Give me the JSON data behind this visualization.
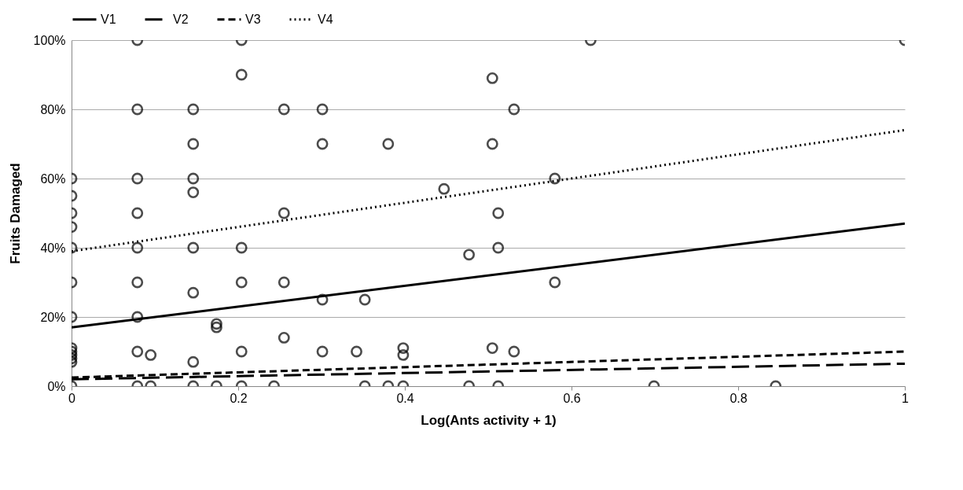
{
  "chart_data": {
    "type": "scatter",
    "xlabel": "Log(Ants activity + 1)",
    "ylabel": "Fruits Damaged",
    "xlim": [
      0,
      1
    ],
    "xticks": [
      0,
      0.2,
      0.4,
      0.6,
      0.8,
      1
    ],
    "ylim": [
      0,
      100
    ],
    "yticks": [
      {
        "value": 0,
        "label": "0%"
      },
      {
        "value": 20,
        "label": "20%"
      },
      {
        "value": 40,
        "label": "40%"
      },
      {
        "value": 60,
        "label": "60%"
      },
      {
        "value": 80,
        "label": "80%"
      },
      {
        "value": 100,
        "label": "100%"
      }
    ],
    "grid": "y",
    "legend": "top",
    "series": [
      {
        "color": "#000000",
        "marker": "circle",
        "x": [
          0,
          0,
          0,
          0,
          0,
          0,
          0,
          0,
          0,
          0,
          0,
          0,
          0,
          0.079,
          0.079,
          0.079,
          0.079,
          0.079,
          0.079,
          0.079,
          0.079,
          0.079,
          0.095,
          0.095,
          0.146,
          0.146,
          0.146,
          0.146,
          0.146,
          0.146,
          0.146,
          0.146,
          0.174,
          0.174,
          0.174,
          0.204,
          0.204,
          0.204,
          0.204,
          0.204,
          0.204,
          0.243,
          0.255,
          0.255,
          0.255,
          0.255,
          0.301,
          0.301,
          0.301,
          0.301,
          0.342,
          0.352,
          0.352,
          0.38,
          0.38,
          0.398,
          0.398,
          0.398,
          0.447,
          0.477,
          0.477,
          0.505,
          0.505,
          0.505,
          0.512,
          0.512,
          0.512,
          0.531,
          0.531,
          0.58,
          0.58,
          0.623,
          0.699,
          0.845,
          1
        ],
        "values": [
          60,
          55,
          50,
          46,
          40,
          30,
          20,
          11,
          10,
          9,
          8,
          7,
          0,
          100,
          80,
          60,
          50,
          40,
          30,
          20,
          10,
          0,
          9,
          0,
          80,
          70,
          60,
          56,
          40,
          27,
          7,
          0,
          18,
          17,
          0,
          100,
          90,
          40,
          30,
          10,
          0,
          0,
          80,
          50,
          30,
          14,
          80,
          70,
          25,
          10,
          10,
          25,
          0,
          70,
          0,
          11,
          9,
          0,
          57,
          38,
          0,
          89,
          70,
          11,
          50,
          40,
          0,
          80,
          10,
          60,
          30,
          100,
          0,
          0,
          100
        ]
      },
      {
        "type": "line",
        "name": "V1",
        "color": "#000000",
        "line_style": "solid",
        "x": [
          0,
          1
        ],
        "values": [
          17,
          47
        ]
      },
      {
        "type": "line",
        "name": "V2",
        "color": "#000000",
        "line_style": "dashed",
        "x": [
          0,
          1
        ],
        "values": [
          2,
          6.5
        ]
      },
      {
        "type": "line",
        "name": "V3",
        "color": "#000000",
        "line_style": "dashed",
        "x": [
          0,
          1
        ],
        "values": [
          2.5,
          10
        ]
      },
      {
        "type": "line",
        "name": "V4",
        "color": "#000000",
        "line_style": "dotted",
        "x": [
          0,
          1
        ],
        "values": [
          39,
          74
        ]
      }
    ]
  }
}
